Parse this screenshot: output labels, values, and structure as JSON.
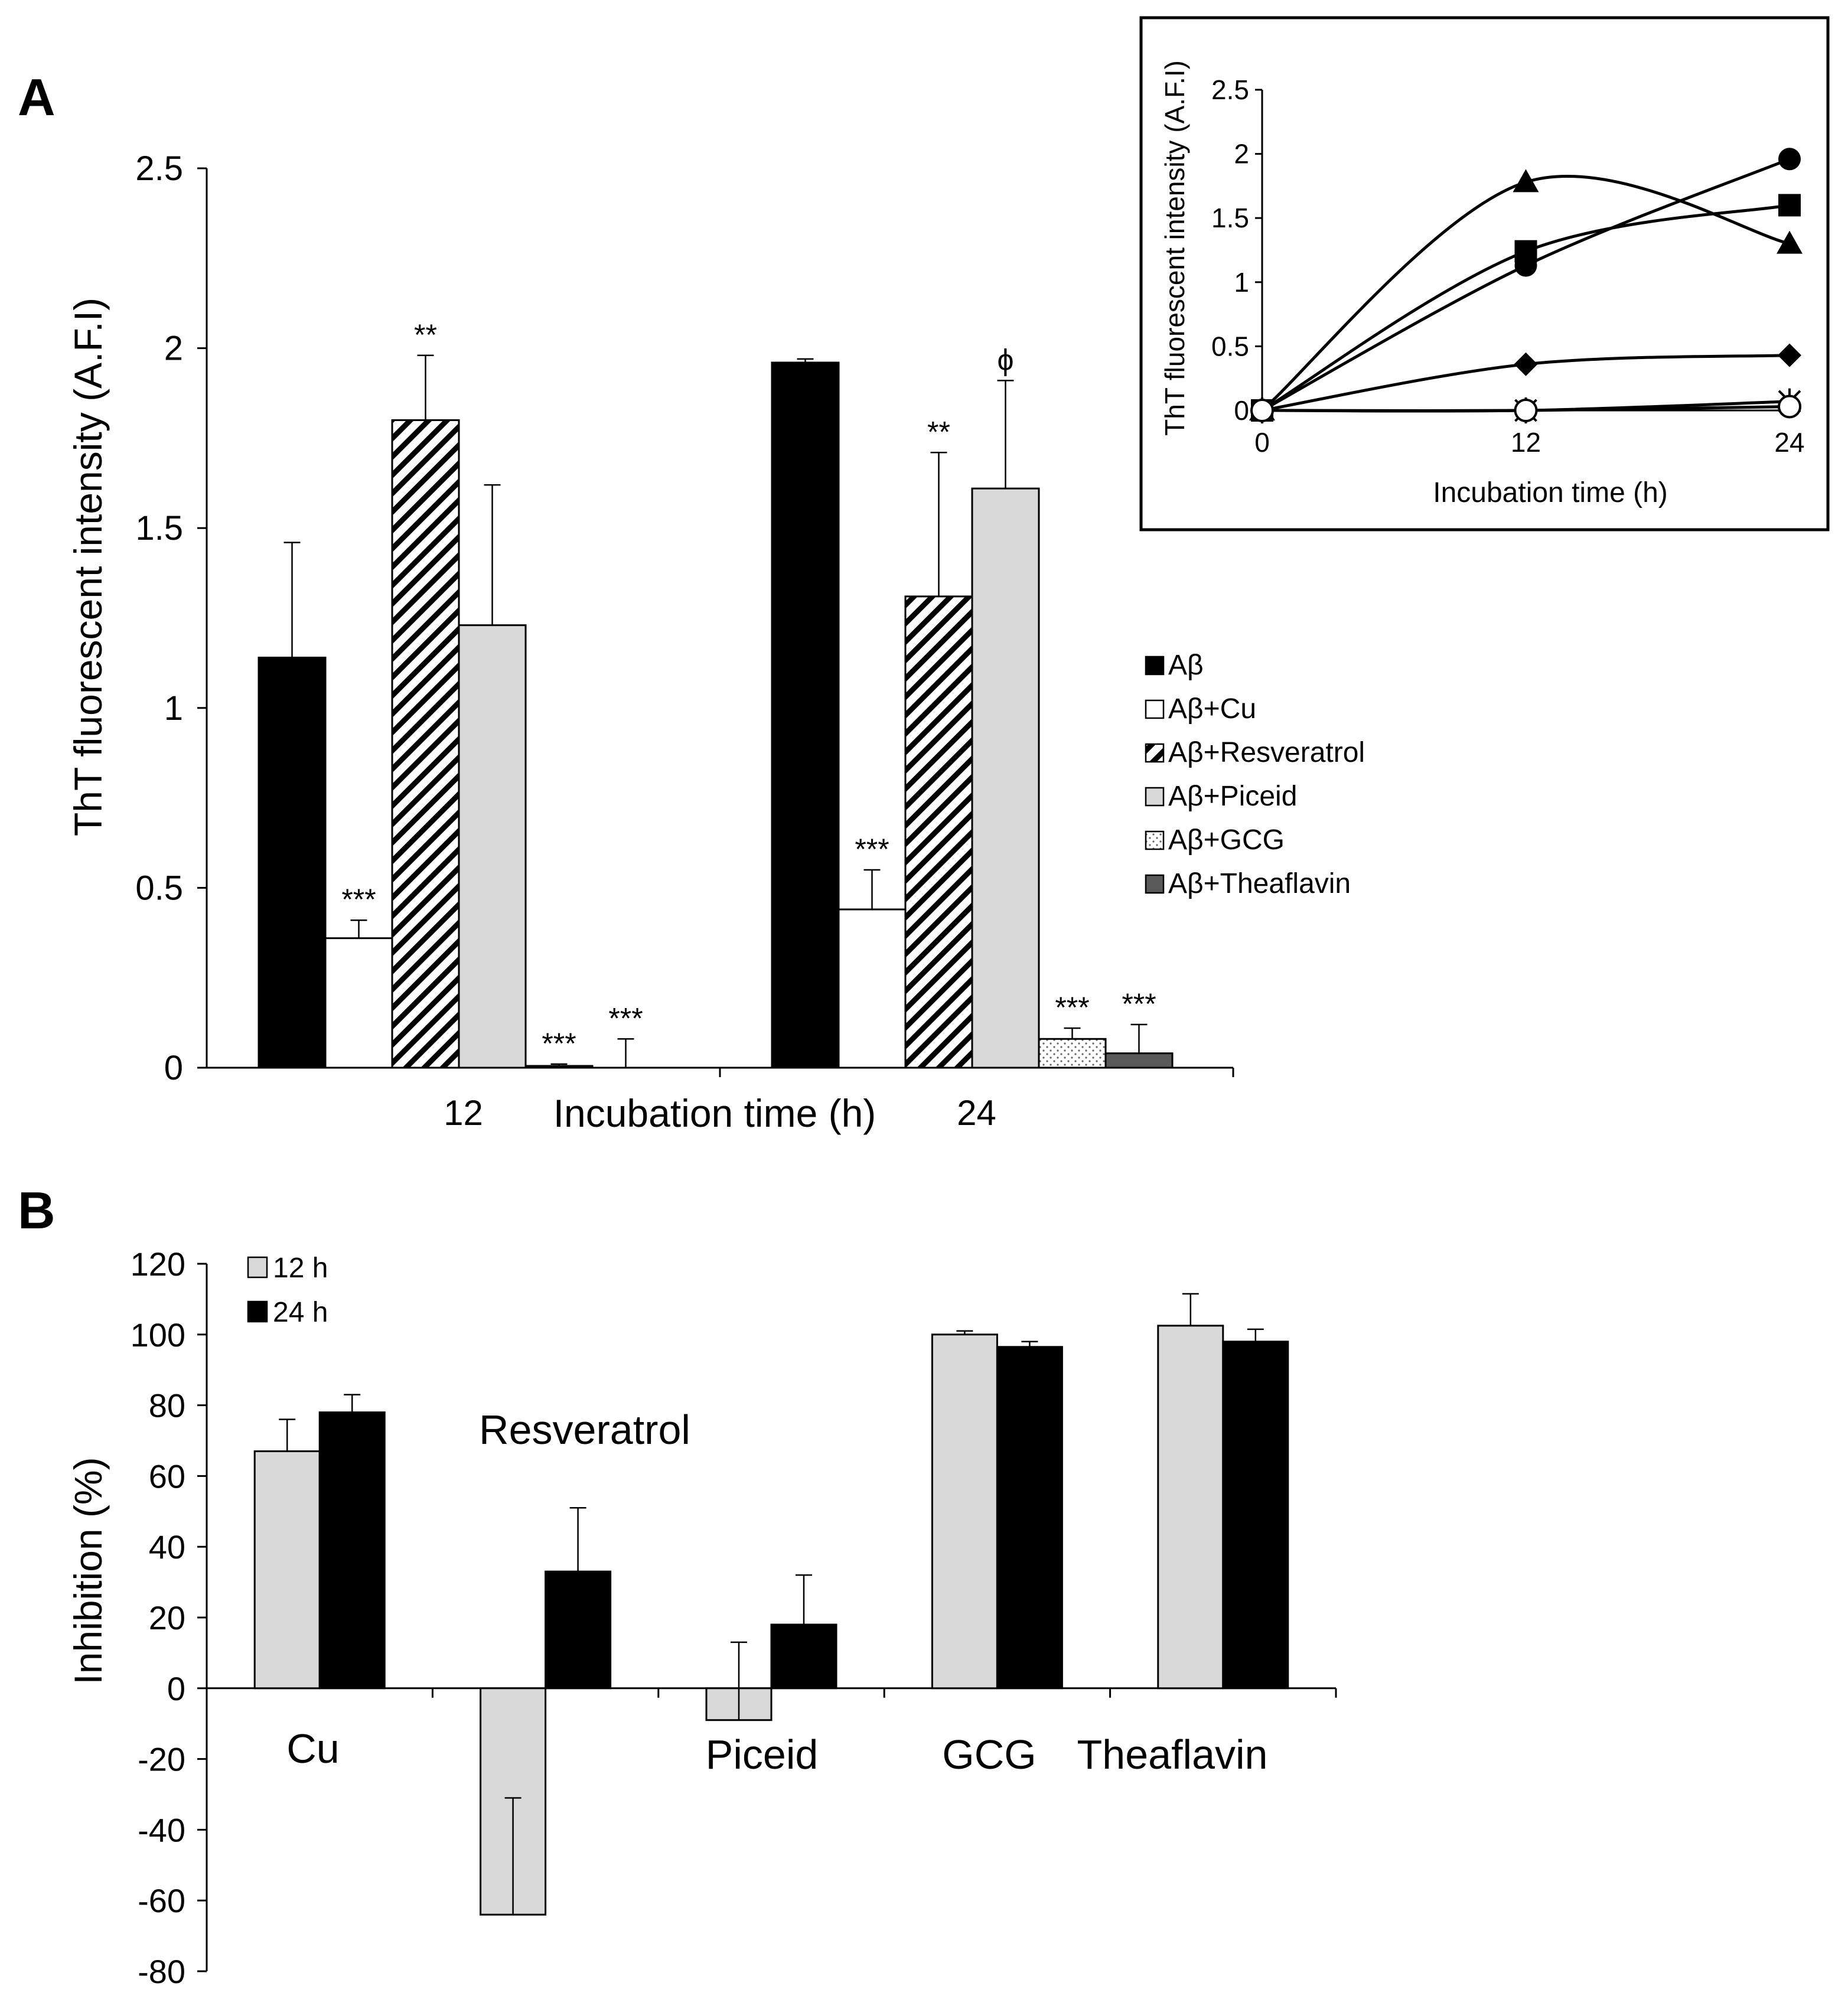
{
  "chart_data": [
    {
      "panel": "A",
      "type": "bar",
      "panel_label": "A",
      "title": "",
      "xlabel": "Incubation time (h)",
      "ylabel": "ThT fluorescent intensity (A.F.I)",
      "ylim": [
        0,
        2.5
      ],
      "yticks": [
        "0",
        "0.5",
        "1",
        "1.5",
        "2",
        "2.5"
      ],
      "categories": [
        "12",
        "24"
      ],
      "series": [
        {
          "name": "Aβ",
          "fill": "solid-black",
          "values": [
            1.14,
            1.96
          ],
          "errors": [
            0.32,
            0.01
          ],
          "marks": [
            "",
            ""
          ]
        },
        {
          "name": "Aβ+Cu",
          "fill": "white",
          "values": [
            0.36,
            0.44
          ],
          "errors": [
            0.05,
            0.11
          ],
          "marks": [
            "***",
            "***"
          ]
        },
        {
          "name": "Aβ+Resveratrol",
          "fill": "hatched",
          "values": [
            1.8,
            1.31
          ],
          "errors": [
            0.18,
            0.4
          ],
          "marks": [
            "**",
            "**"
          ]
        },
        {
          "name": "Aβ+Piceid",
          "fill": "light-gray",
          "values": [
            1.23,
            1.61
          ],
          "errors": [
            0.39,
            0.3
          ],
          "marks": [
            "",
            "ϕ"
          ]
        },
        {
          "name": "Aβ+GCG",
          "fill": "dotted",
          "values": [
            0.005,
            0.08
          ],
          "errors": [
            0.005,
            0.03
          ],
          "marks": [
            "***",
            "***"
          ]
        },
        {
          "name": "Aβ+Theaflavin",
          "fill": "dark-gray",
          "values": [
            0.0,
            0.04
          ],
          "errors": [
            0.08,
            0.08
          ],
          "marks": [
            "***",
            "***"
          ]
        }
      ]
    },
    {
      "panel": "A-inset",
      "type": "line",
      "xlabel": "Incubation time (h)",
      "ylabel": "ThT fluorescent intensity (A.F.I)",
      "x": [
        0,
        12,
        24
      ],
      "xticks": [
        "0",
        "12",
        "24"
      ],
      "ylim": [
        0,
        2.5
      ],
      "yticks": [
        "0",
        "0.5",
        "1",
        "1.5",
        "2",
        "2.5"
      ],
      "series": [
        {
          "name": "circle-filled",
          "marker": "circle-filled",
          "values": [
            0,
            1.13,
            1.96
          ]
        },
        {
          "name": "square-filled",
          "marker": "square-filled",
          "values": [
            0,
            1.24,
            1.6
          ]
        },
        {
          "name": "triangle-filled",
          "marker": "triangle-filled",
          "values": [
            0,
            1.78,
            1.3
          ]
        },
        {
          "name": "diamond-filled",
          "marker": "diamond-filled",
          "values": [
            0,
            0.36,
            0.43
          ]
        },
        {
          "name": "asterisk",
          "marker": "asterisk",
          "values": [
            0,
            0.0,
            0.07
          ]
        },
        {
          "name": "circle-open",
          "marker": "circle-open",
          "values": [
            0,
            0.0,
            0.03
          ]
        }
      ]
    },
    {
      "panel": "B",
      "type": "bar",
      "panel_label": "B",
      "title": "",
      "xlabel": "",
      "ylabel": "Inhibition (%)",
      "ylim": [
        -80,
        120
      ],
      "yticks": [
        "-80",
        "-60",
        "-40",
        "-20",
        "0",
        "20",
        "40",
        "60",
        "80",
        "100",
        "120"
      ],
      "categories": [
        "Cu",
        "Resveratrol",
        "Piceid",
        "GCG",
        "Theaflavin"
      ],
      "series": [
        {
          "name": "12 h",
          "fill": "light-gray",
          "values": [
            67,
            -64,
            -9,
            100,
            102.5
          ],
          "errors": [
            9,
            33,
            22,
            1,
            9
          ]
        },
        {
          "name": "24 h",
          "fill": "solid-black",
          "values": [
            78,
            33,
            18,
            96.5,
            98
          ],
          "errors": [
            5,
            18,
            14,
            1.5,
            3.5
          ]
        }
      ]
    }
  ]
}
